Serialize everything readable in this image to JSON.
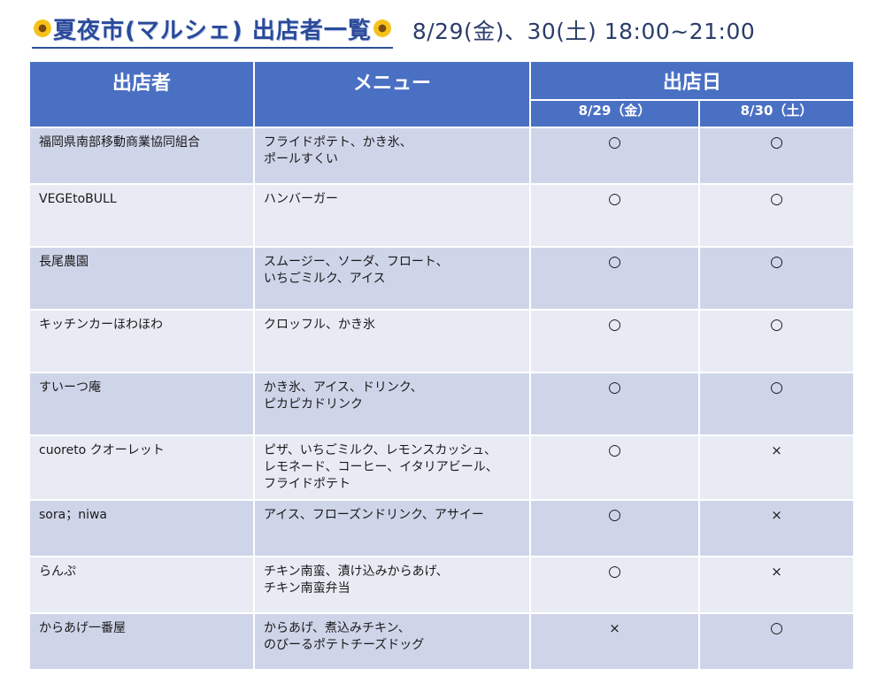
{
  "header": {
    "title": "夏夜市(マルシェ) 出店者一覧",
    "dates": "8/29(金)、30(土) 18:00~21:00"
  },
  "table": {
    "col_vendor": "出店者",
    "col_menu": "メニュー",
    "col_days": "出店日",
    "day1": "8/29（金）",
    "day2": "8/30（土）",
    "rows": [
      {
        "vendor": "福岡県南部移動商業協同組合",
        "menu": [
          "フライドポテト、かき氷、",
          "ポールすくい"
        ],
        "d1": "○",
        "d2": "○"
      },
      {
        "vendor": "VEGEtoBULL",
        "menu": [
          "ハンバーガー"
        ],
        "d1": "○",
        "d2": "○"
      },
      {
        "vendor": "長尾農園",
        "menu": [
          "スムージー、ソーダ、フロート、",
          "いちごミルク、アイス"
        ],
        "d1": "○",
        "d2": "○"
      },
      {
        "vendor": "キッチンカーほわほわ",
        "menu": [
          "クロッフル、かき氷"
        ],
        "d1": "○",
        "d2": "○"
      },
      {
        "vendor": "すいーつ庵",
        "menu": [
          "かき氷、アイス、ドリンク、",
          "ピカピカドリンク"
        ],
        "d1": "○",
        "d2": "○"
      },
      {
        "vendor": "cuoreto クオーレット",
        "menu": [
          "ピザ、いちごミルク、レモンスカッシュ、",
          "レモネード、コーヒー、イタリアビール、",
          "フライドポテト"
        ],
        "d1": "○",
        "d2": "×"
      },
      {
        "vendor": "sora；niwa",
        "menu": [
          "アイス、フローズンドリンク、アサイー"
        ],
        "d1": "○",
        "d2": "×"
      },
      {
        "vendor": "らんぷ",
        "menu": [
          "チキン南蛮、漬け込みからあげ、",
          "チキン南蛮弁当"
        ],
        "d1": "○",
        "d2": "×"
      },
      {
        "vendor": "からあげ一番屋",
        "menu": [
          "からあげ、煮込みチキン、",
          "のびーるポテトチーズドッグ"
        ],
        "d1": "×",
        "d2": "○"
      }
    ]
  }
}
